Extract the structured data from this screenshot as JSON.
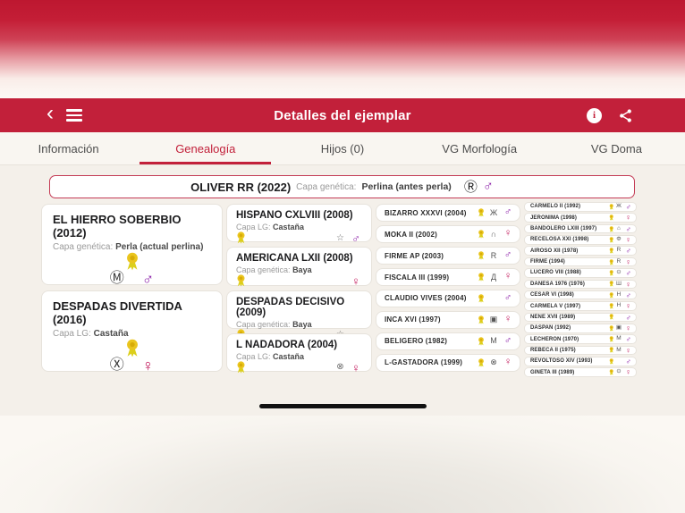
{
  "nav": {
    "title": "Detalles del ejemplar"
  },
  "tabs": [
    {
      "label": "Información",
      "active": false
    },
    {
      "label": "Genealogía",
      "active": true
    },
    {
      "label": "Hijos (0)",
      "active": false
    },
    {
      "label": "VG Morfología",
      "active": false
    },
    {
      "label": "VG Doma",
      "active": false
    }
  ],
  "symbols": {
    "male": "♂",
    "female": "♀"
  },
  "colors": {
    "accent": "#c2203a",
    "male": "#8e24aa",
    "female": "#c2185b",
    "medal": "#eac51e"
  },
  "subject": {
    "name": "OLIVER RR (2022)",
    "capa_label": "Capa genética:",
    "capa_value": "Perlina (antes perla)",
    "brand": "Ⓡ",
    "sex": "male"
  },
  "generations": [
    [
      {
        "name": "EL HIERRO SOBERBIO (2012)",
        "capa_label": "Capa genética:",
        "capa_value": "Perla (actual perlina)",
        "brand": "Ⓜ",
        "sex": "male"
      },
      {
        "name": "DESPADAS DIVERTIDA (2016)",
        "capa_label": "Capa LG:",
        "capa_value": "Castaña",
        "brand": "Ⓧ",
        "sex": "female"
      }
    ],
    [
      {
        "name": "HISPANO CXLVIII (2008)",
        "capa_label": "Capa LG:",
        "capa_value": "Castaña",
        "brand": "☆",
        "sex": "male"
      },
      {
        "name": "AMERICANA LXII (2008)",
        "capa_label": "Capa genética:",
        "capa_value": "Baya",
        "brand": "",
        "sex": "female"
      },
      {
        "name": "DESPADAS DECISIVO (2009)",
        "capa_label": "Capa genética:",
        "capa_value": "Baya",
        "brand": "☆",
        "sex": "male"
      },
      {
        "name": "L NADADORA (2004)",
        "capa_label": "Capa LG:",
        "capa_value": "Castaña",
        "brand": "⊗",
        "sex": "female"
      }
    ],
    [
      {
        "name": "BIZARRO XXXVI (2004)",
        "brand": "Ж",
        "sex": "male"
      },
      {
        "name": "MOKA II (2002)",
        "brand": "∩",
        "sex": "female"
      },
      {
        "name": "FIRME AP (2003)",
        "brand": "R",
        "sex": "male"
      },
      {
        "name": "FISCALA III (1999)",
        "brand": "Д",
        "sex": "female"
      },
      {
        "name": "CLAUDIO VIVES (2004)",
        "brand": "",
        "sex": "male"
      },
      {
        "name": "INCA XVI (1997)",
        "brand": "▣",
        "sex": "female"
      },
      {
        "name": "BELIGERO (1982)",
        "brand": "M",
        "sex": "male"
      },
      {
        "name": "L-GASTADORA (1999)",
        "brand": "⊗",
        "sex": "female"
      }
    ],
    [
      {
        "name": "CARMELO II (1992)",
        "brand": "Ж",
        "sex": "male"
      },
      {
        "name": "JERONIMA (1998)",
        "brand": "",
        "sex": "female"
      },
      {
        "name": "BANDOLERO LXIII (1997)",
        "brand": "⌂",
        "sex": "male"
      },
      {
        "name": "RECELOSA XXI (1998)",
        "brand": "Φ",
        "sex": "female"
      },
      {
        "name": "AIROSO XII (1978)",
        "brand": "R",
        "sex": "male"
      },
      {
        "name": "FIRME (1994)",
        "brand": "R",
        "sex": "female"
      },
      {
        "name": "LUCERO VIII (1988)",
        "brand": "⊙",
        "sex": "male"
      },
      {
        "name": "DANESA 1976 (1976)",
        "brand": "Ш",
        "sex": "female"
      },
      {
        "name": "CESAR VI (1998)",
        "brand": "H",
        "sex": "male"
      },
      {
        "name": "CARMELA V (1997)",
        "brand": "H",
        "sex": "female"
      },
      {
        "name": "NENE XVII (1989)",
        "brand": "",
        "sex": "male"
      },
      {
        "name": "DASPAN (1992)",
        "brand": "▣",
        "sex": "female"
      },
      {
        "name": "LECHERON (1970)",
        "brand": "M",
        "sex": "male"
      },
      {
        "name": "REBECA II (1975)",
        "brand": "M",
        "sex": "female"
      },
      {
        "name": "REVOLTOSO XIV (1993)",
        "brand": "",
        "sex": "male"
      },
      {
        "name": "GINETA III (1989)",
        "brand": "⊙",
        "sex": "female"
      }
    ]
  ]
}
